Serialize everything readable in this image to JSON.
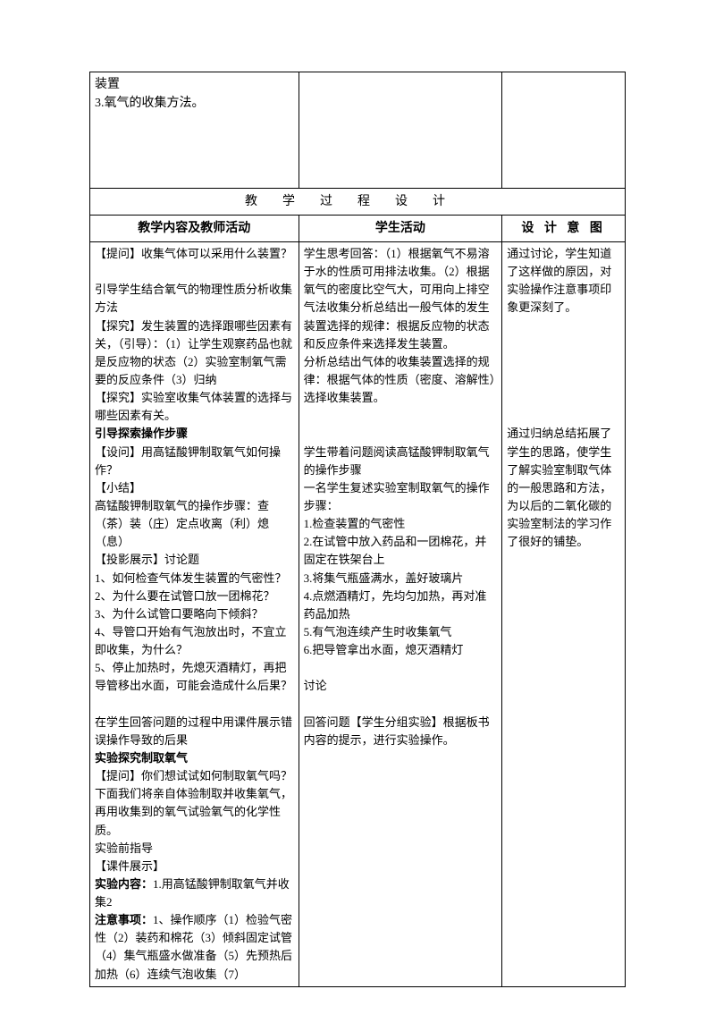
{
  "topRow": {
    "cell1": "装置\n3.氧气的收集方法。",
    "cell2": "",
    "cell3": ""
  },
  "sectionHeader": "教学过程设计",
  "subHeaders": {
    "col1": "教学内容及教师活动",
    "col2": "学生活动",
    "col3": "设 计 意 图"
  },
  "content": {
    "col1": [
      {
        "text": "【提问】收集气体可以采用什么装置？",
        "bold": false
      },
      {
        "text": "",
        "bold": false
      },
      {
        "text": "引导学生结合氧气的物理性质分析收集方法",
        "bold": false
      },
      {
        "text": "【探究】发生装置的选择跟哪些因素有关，（引导）：（1）让学生观察药品也就是反应物的状态（2）实验室制氧气需要的反应条件（3）归纳",
        "bold": false
      },
      {
        "text": "【探究】实验室收集气体装置的选择与哪些因素有关。",
        "bold": false
      },
      {
        "text": "引导探索操作步骤",
        "bold": true
      },
      {
        "text": "【设问】用高锰酸钾制取氧气如何操作？",
        "bold": false
      },
      {
        "text": "【小结】",
        "bold": false
      },
      {
        "text": "高锰酸钾制取氧气的操作步骤：查（茶）装（庄）定点收离（利）熄（息）",
        "bold": false
      },
      {
        "text": "【投影展示】讨论题",
        "bold": false
      },
      {
        "text": "1、如何检查气体发生装置的气密性？",
        "bold": false
      },
      {
        "text": "2、为什么要在试管口放一团棉花？",
        "bold": false
      },
      {
        "text": "3、为什么试管口要略向下倾斜？",
        "bold": false
      },
      {
        "text": "4、导管口开始有气泡放出时，不宜立即收集，为什么？",
        "bold": false
      },
      {
        "text": "5、停止加热时，先熄灭酒精灯，再把导管移出水面，可能会造成什么后果？",
        "bold": false
      },
      {
        "text": "",
        "bold": false
      },
      {
        "text": "在学生回答问题的过程中用课件展示错误操作导致的后果",
        "bold": false
      },
      {
        "text": "实验探究制取氧气",
        "bold": true
      },
      {
        "text": "【提问】你们想试试如何制取氧气吗？下面我们将亲自体验制取并收集氧气，再用收集到的氧气试验氧气的化学性质。",
        "bold": false
      },
      {
        "text": "实验前指导",
        "bold": false
      },
      {
        "text": "【课件展示】",
        "bold": false
      },
      {
        "text": "实验内容：1.用高锰酸钾制取氧气并收集2",
        "bold": false,
        "boldPrefix": "实验内容："
      },
      {
        "text": "注意事项：1、操作顺序（1）检验气密性（2）装药和棉花（3）倾斜固定试管（4）集气瓶盛水做准备（5）先预热后加热（6）连续气泡收集（7）",
        "bold": false,
        "boldPrefix": "注意事项："
      }
    ],
    "col2": [
      {
        "text": "学生思考回答：（1）根据氧气不易溶于水的性质可用排法收集。（2）根据氧气的密度比空气大，可用向上排空气法收集分析总结出一般气体的发生装置选择的规律：根据反应物的状态和反应条件来选择发生装置。"
      },
      {
        "text": "分析总结出气体的收集装置选择的规律：根据气体的性质（密度、溶解性）选择收集装置。"
      },
      {
        "text": ""
      },
      {
        "text": ""
      },
      {
        "text": "学生带着问题阅读高锰酸钾制取氧气的操作步骤"
      },
      {
        "text": "一名学生复述实验室制取氧气的操作步骤："
      },
      {
        "text": "1.检查装置的气密性"
      },
      {
        "text": "2.在试管中放入药品和一团棉花，并固定在铁架台上"
      },
      {
        "text": "3.将集气瓶盛满水，盖好玻璃片"
      },
      {
        "text": "4.点燃酒精灯，先均匀加热，再对准药品加热"
      },
      {
        "text": "5.有气泡连续产生时收集氧气"
      },
      {
        "text": "6.把导管拿出水面，熄灭酒精灯"
      },
      {
        "text": ""
      },
      {
        "text": "讨论"
      },
      {
        "text": ""
      },
      {
        "text": "回答问题【学生分组实验】根据板书内容的提示，进行实验操作。"
      }
    ],
    "col3": [
      {
        "text": "通过讨论，学生知道了这样做的原因，对实验操作注意事项印象更深刻了。"
      },
      {
        "text": ""
      },
      {
        "text": ""
      },
      {
        "text": ""
      },
      {
        "text": ""
      },
      {
        "text": ""
      },
      {
        "text": ""
      },
      {
        "text": "通过归纳总结拓展了学生的思路，使学生了解实验室制取气体的一般思路和方法，为以后的二氧化碳的实验室制法的学习作了很好的铺垫。"
      }
    ]
  }
}
